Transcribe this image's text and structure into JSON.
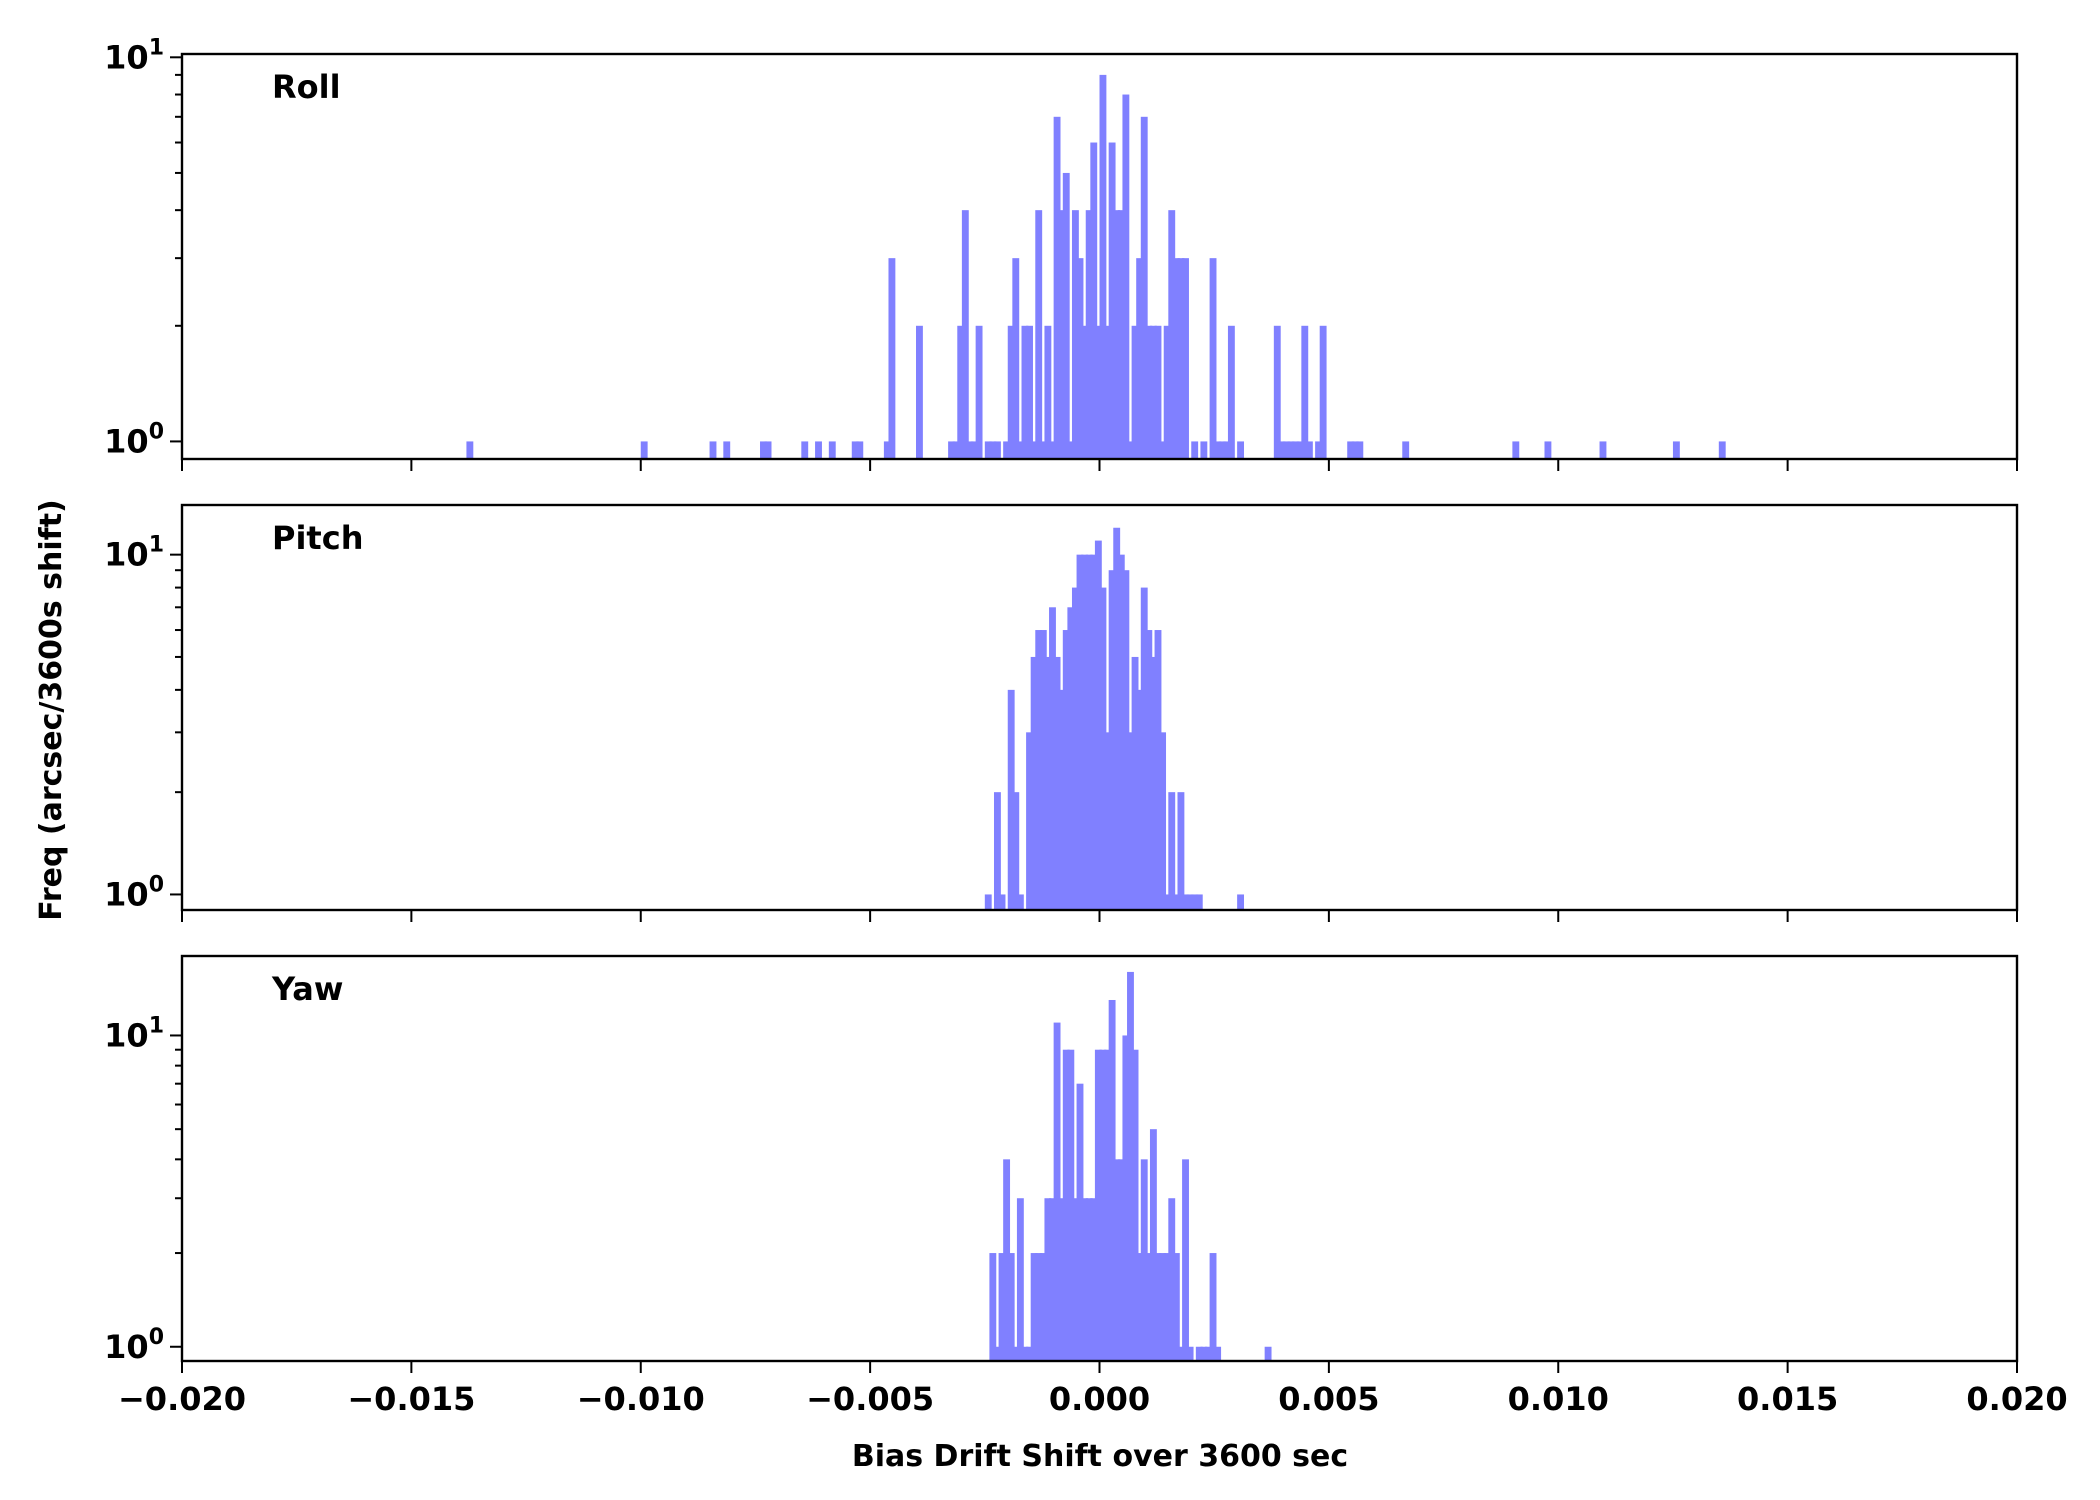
{
  "chart_data": {
    "type": "bar",
    "subtype": "histogram",
    "xlabel": "Bias Drift Shift over 3600 sec",
    "ylabel": "Freq (arcsec/3600s shift)",
    "xlim": [
      -0.02,
      0.02
    ],
    "x_ticks": [
      -0.02,
      -0.015,
      -0.01,
      -0.005,
      0.0,
      0.005,
      0.01,
      0.015,
      0.02
    ],
    "x_tick_labels": [
      "−0.020",
      "−0.015",
      "−0.010",
      "−0.005",
      "0.000",
      "0.005",
      "0.010",
      "0.015",
      "0.020"
    ],
    "yscale": "log",
    "bar_color": "#8080ff",
    "bin_width": 0.00015,
    "panels": [
      {
        "name": "Roll",
        "label": "Roll",
        "ylim": [
          0.9,
          10.2
        ],
        "y_ticks": [
          1,
          10
        ],
        "bins": [
          [
            -0.0138,
            1
          ],
          [
            -0.01,
            1
          ],
          [
            -0.0085,
            1
          ],
          [
            -0.0082,
            1
          ],
          [
            -0.0074,
            1
          ],
          [
            -0.0073,
            1
          ],
          [
            -0.0065,
            1
          ],
          [
            -0.0062,
            1
          ],
          [
            -0.0059,
            1
          ],
          [
            -0.0054,
            1
          ],
          [
            -0.0053,
            1
          ],
          [
            -0.0047,
            1
          ],
          [
            -0.0046,
            3
          ],
          [
            -0.004,
            2
          ],
          [
            -0.0033,
            1
          ],
          [
            -0.0032,
            1
          ],
          [
            -0.0031,
            2
          ],
          [
            -0.003,
            4
          ],
          [
            -0.0029,
            1
          ],
          [
            -0.0028,
            1
          ],
          [
            -0.0027,
            2
          ],
          [
            -0.0025,
            1
          ],
          [
            -0.0024,
            1
          ],
          [
            -0.0023,
            1
          ],
          [
            -0.0021,
            1
          ],
          [
            -0.002,
            2
          ],
          [
            -0.0019,
            3
          ],
          [
            -0.0018,
            1
          ],
          [
            -0.0017,
            2
          ],
          [
            -0.0016,
            2
          ],
          [
            -0.0015,
            1
          ],
          [
            -0.0014,
            4
          ],
          [
            -0.0013,
            1
          ],
          [
            -0.0012,
            2
          ],
          [
            -0.0011,
            1
          ],
          [
            -0.001,
            7
          ],
          [
            -0.0009,
            4
          ],
          [
            -0.0008,
            5
          ],
          [
            -0.0007,
            1
          ],
          [
            -0.0006,
            4
          ],
          [
            -0.0005,
            3
          ],
          [
            -0.0004,
            2
          ],
          [
            -0.0003,
            4
          ],
          [
            -0.0002,
            6
          ],
          [
            -0.0001,
            2
          ],
          [
            0.0,
            9
          ],
          [
            0.0001,
            2
          ],
          [
            0.0002,
            6
          ],
          [
            0.0003,
            4
          ],
          [
            0.0004,
            4
          ],
          [
            0.0005,
            8
          ],
          [
            0.0006,
            1
          ],
          [
            0.0007,
            2
          ],
          [
            0.0008,
            3
          ],
          [
            0.0009,
            7
          ],
          [
            0.001,
            2
          ],
          [
            0.0011,
            2
          ],
          [
            0.0012,
            2
          ],
          [
            0.0013,
            1
          ],
          [
            0.0014,
            2
          ],
          [
            0.0015,
            4
          ],
          [
            0.0016,
            3
          ],
          [
            0.0017,
            3
          ],
          [
            0.0018,
            3
          ],
          [
            0.002,
            1
          ],
          [
            0.0022,
            1
          ],
          [
            0.0024,
            3
          ],
          [
            0.0025,
            1
          ],
          [
            0.0026,
            1
          ],
          [
            0.0027,
            1
          ],
          [
            0.0028,
            2
          ],
          [
            0.003,
            1
          ],
          [
            0.0038,
            2
          ],
          [
            0.0039,
            1
          ],
          [
            0.004,
            1
          ],
          [
            0.0041,
            1
          ],
          [
            0.0042,
            1
          ],
          [
            0.0043,
            1
          ],
          [
            0.0044,
            2
          ],
          [
            0.0045,
            1
          ],
          [
            0.0047,
            1
          ],
          [
            0.0048,
            2
          ],
          [
            0.0054,
            1
          ],
          [
            0.0055,
            1
          ],
          [
            0.0056,
            1
          ],
          [
            0.0066,
            1
          ],
          [
            0.009,
            1
          ],
          [
            0.0097,
            1
          ],
          [
            0.0109,
            1
          ],
          [
            0.0125,
            1
          ],
          [
            0.0135,
            1
          ]
        ]
      },
      {
        "name": "Pitch",
        "label": "Pitch",
        "ylim": [
          0.9,
          14
        ],
        "y_ticks": [
          1,
          10
        ],
        "bins": [
          [
            -0.0025,
            1
          ],
          [
            -0.0023,
            2
          ],
          [
            -0.0022,
            1
          ],
          [
            -0.002,
            4
          ],
          [
            -0.0019,
            2
          ],
          [
            -0.0018,
            1
          ],
          [
            -0.0016,
            3
          ],
          [
            -0.0015,
            5
          ],
          [
            -0.0014,
            6
          ],
          [
            -0.0013,
            6
          ],
          [
            -0.0012,
            5
          ],
          [
            -0.0011,
            7
          ],
          [
            -0.001,
            5
          ],
          [
            -0.0009,
            4
          ],
          [
            -0.0008,
            6
          ],
          [
            -0.0007,
            7
          ],
          [
            -0.0006,
            8
          ],
          [
            -0.0005,
            10
          ],
          [
            -0.0004,
            10
          ],
          [
            -0.0003,
            10
          ],
          [
            -0.0002,
            10
          ],
          [
            -0.0001,
            11
          ],
          [
            0.0,
            8
          ],
          [
            0.0001,
            3
          ],
          [
            0.0002,
            9
          ],
          [
            0.0003,
            12
          ],
          [
            0.0004,
            10
          ],
          [
            0.0005,
            9
          ],
          [
            0.0006,
            3
          ],
          [
            0.0007,
            5
          ],
          [
            0.0008,
            4
          ],
          [
            0.0009,
            8
          ],
          [
            0.001,
            6
          ],
          [
            0.0011,
            5
          ],
          [
            0.0012,
            6
          ],
          [
            0.0013,
            3
          ],
          [
            0.0014,
            1
          ],
          [
            0.0015,
            2
          ],
          [
            0.0016,
            1
          ],
          [
            0.0017,
            2
          ],
          [
            0.0018,
            1
          ],
          [
            0.0019,
            1
          ],
          [
            0.002,
            1
          ],
          [
            0.0021,
            1
          ],
          [
            0.003,
            1
          ]
        ]
      },
      {
        "name": "Yaw",
        "label": "Yaw",
        "ylim": [
          0.9,
          18
        ],
        "y_ticks": [
          1,
          10
        ],
        "bins": [
          [
            -0.0024,
            2
          ],
          [
            -0.0023,
            1
          ],
          [
            -0.0022,
            2
          ],
          [
            -0.0021,
            4
          ],
          [
            -0.002,
            2
          ],
          [
            -0.0019,
            1
          ],
          [
            -0.0018,
            3
          ],
          [
            -0.0017,
            1
          ],
          [
            -0.0016,
            1
          ],
          [
            -0.0015,
            2
          ],
          [
            -0.0014,
            2
          ],
          [
            -0.0013,
            2
          ],
          [
            -0.0012,
            3
          ],
          [
            -0.0011,
            3
          ],
          [
            -0.001,
            11
          ],
          [
            -0.0009,
            3
          ],
          [
            -0.0008,
            9
          ],
          [
            -0.0007,
            9
          ],
          [
            -0.0006,
            3
          ],
          [
            -0.0005,
            7
          ],
          [
            -0.0004,
            3
          ],
          [
            -0.0003,
            3
          ],
          [
            -0.0002,
            3
          ],
          [
            -0.0001,
            9
          ],
          [
            0.0,
            9
          ],
          [
            0.0001,
            9
          ],
          [
            0.0002,
            13
          ],
          [
            0.0003,
            4
          ],
          [
            0.0004,
            4
          ],
          [
            0.0005,
            10
          ],
          [
            0.0006,
            16
          ],
          [
            0.0007,
            9
          ],
          [
            0.0008,
            2
          ],
          [
            0.0009,
            4
          ],
          [
            0.001,
            2
          ],
          [
            0.0011,
            5
          ],
          [
            0.0012,
            2
          ],
          [
            0.0013,
            2
          ],
          [
            0.0014,
            2
          ],
          [
            0.0015,
            3
          ],
          [
            0.0016,
            2
          ],
          [
            0.0017,
            1
          ],
          [
            0.0018,
            4
          ],
          [
            0.0019,
            1
          ],
          [
            0.0021,
            1
          ],
          [
            0.0022,
            1
          ],
          [
            0.0023,
            1
          ],
          [
            0.0024,
            2
          ],
          [
            0.0025,
            1
          ],
          [
            0.0036,
            1
          ]
        ]
      }
    ]
  }
}
